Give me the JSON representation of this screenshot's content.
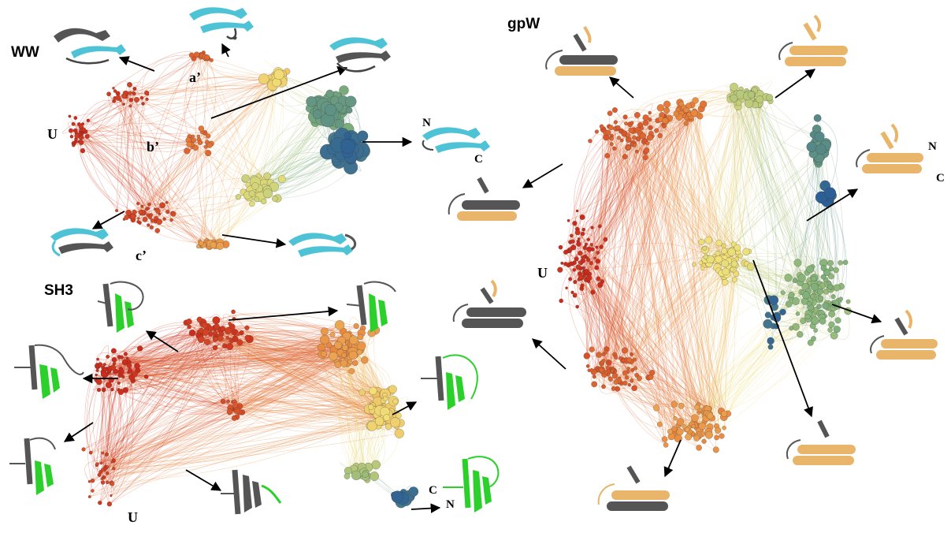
{
  "panels": {
    "ww": {
      "title": "WW",
      "labels": {
        "unfolded": "U",
        "a": "a’",
        "b": "b’",
        "c": "c’",
        "n_term": "N",
        "c_term": "C"
      },
      "ribbon_color": "#4fc3d6"
    },
    "sh3": {
      "title": "SH3",
      "labels": {
        "unfolded": "U",
        "n_term": "N",
        "c_term": "C"
      },
      "ribbon_color": "#2bd02b"
    },
    "gpw": {
      "title": "gpW",
      "labels": {
        "unfolded": "U",
        "n_term": "N",
        "c_term": "C"
      },
      "ribbon_color": "#e8b56a"
    }
  },
  "colors": {
    "unfolded": "#cc2a1a",
    "orange": "#e8803a",
    "yellow": "#f2e27a",
    "green": "#7fb07a",
    "native": "#2c5f95",
    "structure_gray": "#5a5a5a"
  }
}
